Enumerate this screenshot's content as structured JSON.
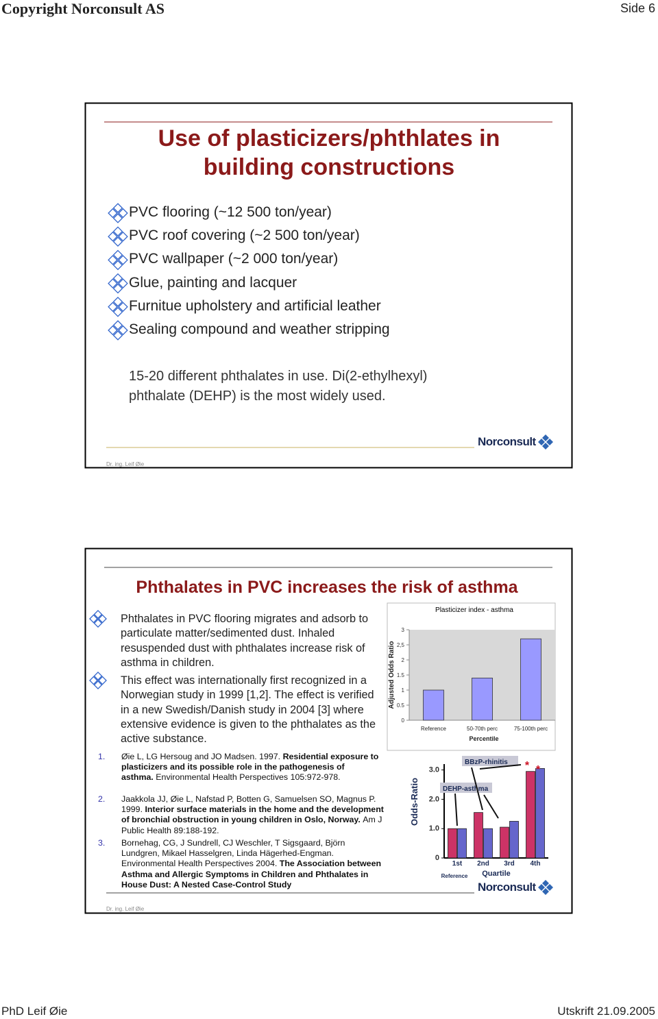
{
  "header": {
    "title": "Copyright Norconsult AS",
    "page": "Side 6"
  },
  "slides": [
    {
      "title_lines": [
        "Use of plasticizers/phthlates in",
        "building constructions"
      ],
      "bullets": [
        "PVC flooring (~12 500 ton/year)",
        "PVC roof covering (~2 500 ton/year)",
        "PVC wallpaper (~2 000 ton/year)",
        "Glue, painting and lacquer",
        "Furnitue upholstery and artificial leather",
        "Sealing compound and weather stripping"
      ],
      "paragraph_lines": [
        "15-20 different phthalates in use. Di(2-ethylhexyl)",
        "phthalate (DEHP) is the most widely used."
      ],
      "logo": "Norconsult",
      "author": "Dr. ing. Leif Øie"
    },
    {
      "title": "Phthalates in PVC increases the risk of asthma",
      "bullets": [
        "Phthalates in PVC flooring migrates and adsorb to particulate matter/sedimented dust. Inhaled resuspended dust with phthalates increase risk of asthma in children.",
        "This effect was internationally first recognized in a Norwegian study in 1999 [1,2]. The effect is verified in a new Swedish/Danish study in 2004 [3] where extensive evidence is given to the phthalates as the active substance."
      ],
      "references": [
        {
          "number": "1.",
          "segments": [
            {
              "text": "Øie L, LG Hersoug and JO Madsen. 1997."
            },
            {
              "text": "Residential exposure to plasticizers and its possible role in the pathogenesis of asthma.",
              "bold": true
            },
            {
              "text": "Environmental Health Perspectives 105:972-978."
            }
          ]
        },
        {
          "number": "2.",
          "segments": [
            {
              "text": "Jaakkola JJ, Øie L, Nafstad P, Botten G, Samuelsen SO, Magnus P. 1999."
            },
            {
              "text": "Interior surface materials in the home and the development of bronchial obstruction in young children in Oslo, Norway.",
              "bold": true
            },
            {
              "text": "Am J Public Health 89:188-192."
            }
          ]
        },
        {
          "number": "3.",
          "segments": [
            {
              "text": "Bornehag, CG, J Sundrell, CJ Weschler, T Sigsgaard, Björn Lundgren, Mikael Hasselgren, Linda Hägerhed-Engman. Environmental Health Perspectives 2004."
            },
            {
              "text": "The Association between Asthma and Allergic Symptoms in Children and Phthalates in House Dust: A Nested Case-Control Study",
              "bold": true
            }
          ]
        }
      ],
      "logo": "Norconsult",
      "author": "Dr. ing. Leif Øie"
    }
  ],
  "chart_data": [
    {
      "type": "bar",
      "title": "Plasticizer index - asthma",
      "y_label": "Adjusted Odds Ratio",
      "x_label": "Percentile",
      "categories": [
        "Reference",
        "50-70th perc",
        "75-100th perc"
      ],
      "values": [
        1.0,
        1.4,
        2.7
      ],
      "color": "#9999ff",
      "ylim": [
        0,
        3
      ],
      "yticks": [
        0,
        0.5,
        1,
        1.5,
        2,
        {
          "value": 2.5,
          "label": "2,5"
        },
        3
      ]
    },
    {
      "type": "bar",
      "y_label": "Odds-Ratio",
      "x_label": "Quartile",
      "categories": [
        "1st",
        "2nd",
        "3rd",
        "4th"
      ],
      "category_note": "Reference",
      "series": [
        {
          "name": "BBzP-rhinitis",
          "color": "#cc3366",
          "values": [
            1.0,
            1.55,
            1.05,
            2.95
          ]
        },
        {
          "name": "DEHP-asthma",
          "color": "#6666cc",
          "values": [
            1.0,
            1.0,
            1.25,
            3.05
          ]
        }
      ],
      "annotations": [
        "*",
        "*"
      ],
      "ylim": [
        0,
        3.2
      ],
      "yticks": [
        0,
        {
          "value": 1,
          "label": "1.0"
        },
        {
          "value": 2,
          "label": "2.0"
        },
        {
          "value": 3,
          "label": "3.0"
        }
      ]
    }
  ],
  "footer": {
    "left": "PhD Leif Øie",
    "right": "Utskrift 21.09.2005"
  }
}
